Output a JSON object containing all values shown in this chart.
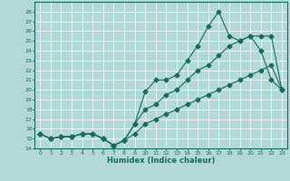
{
  "xlabel": "Humidex (Indice chaleur)",
  "bg_color": "#b2d8d8",
  "grid_color": "#ffffff",
  "line_color": "#1a6b5a",
  "x_values": [
    0,
    1,
    2,
    3,
    4,
    5,
    6,
    7,
    8,
    9,
    10,
    11,
    12,
    13,
    14,
    15,
    16,
    17,
    18,
    19,
    20,
    21,
    22,
    23
  ],
  "line1": [
    15.5,
    15.0,
    15.2,
    15.2,
    15.5,
    15.5,
    15.0,
    14.3,
    14.8,
    16.5,
    19.8,
    21.0,
    21.0,
    21.5,
    23.0,
    24.5,
    26.5,
    28.0,
    25.5,
    25.0,
    25.5,
    24.0,
    21.0,
    20.0
  ],
  "line2": [
    15.5,
    15.0,
    15.2,
    15.2,
    15.5,
    15.5,
    15.0,
    14.3,
    14.8,
    16.5,
    18.0,
    18.5,
    19.5,
    20.0,
    21.0,
    22.0,
    22.5,
    23.5,
    24.5,
    25.0,
    25.5,
    25.5,
    25.5,
    20.0
  ],
  "line3": [
    15.5,
    15.0,
    15.2,
    15.2,
    15.5,
    15.5,
    15.0,
    14.3,
    14.8,
    15.5,
    16.5,
    17.0,
    17.5,
    18.0,
    18.5,
    19.0,
    19.5,
    20.0,
    20.5,
    21.0,
    21.5,
    22.0,
    22.5,
    20.0
  ],
  "ylim": [
    14,
    29
  ],
  "xlim": [
    -0.5,
    23.5
  ],
  "yticks": [
    14,
    15,
    16,
    17,
    18,
    19,
    20,
    21,
    22,
    23,
    24,
    25,
    26,
    27,
    28
  ],
  "xticks": [
    0,
    1,
    2,
    3,
    4,
    5,
    6,
    7,
    8,
    9,
    10,
    11,
    12,
    13,
    14,
    15,
    16,
    17,
    18,
    19,
    20,
    21,
    22,
    23
  ]
}
